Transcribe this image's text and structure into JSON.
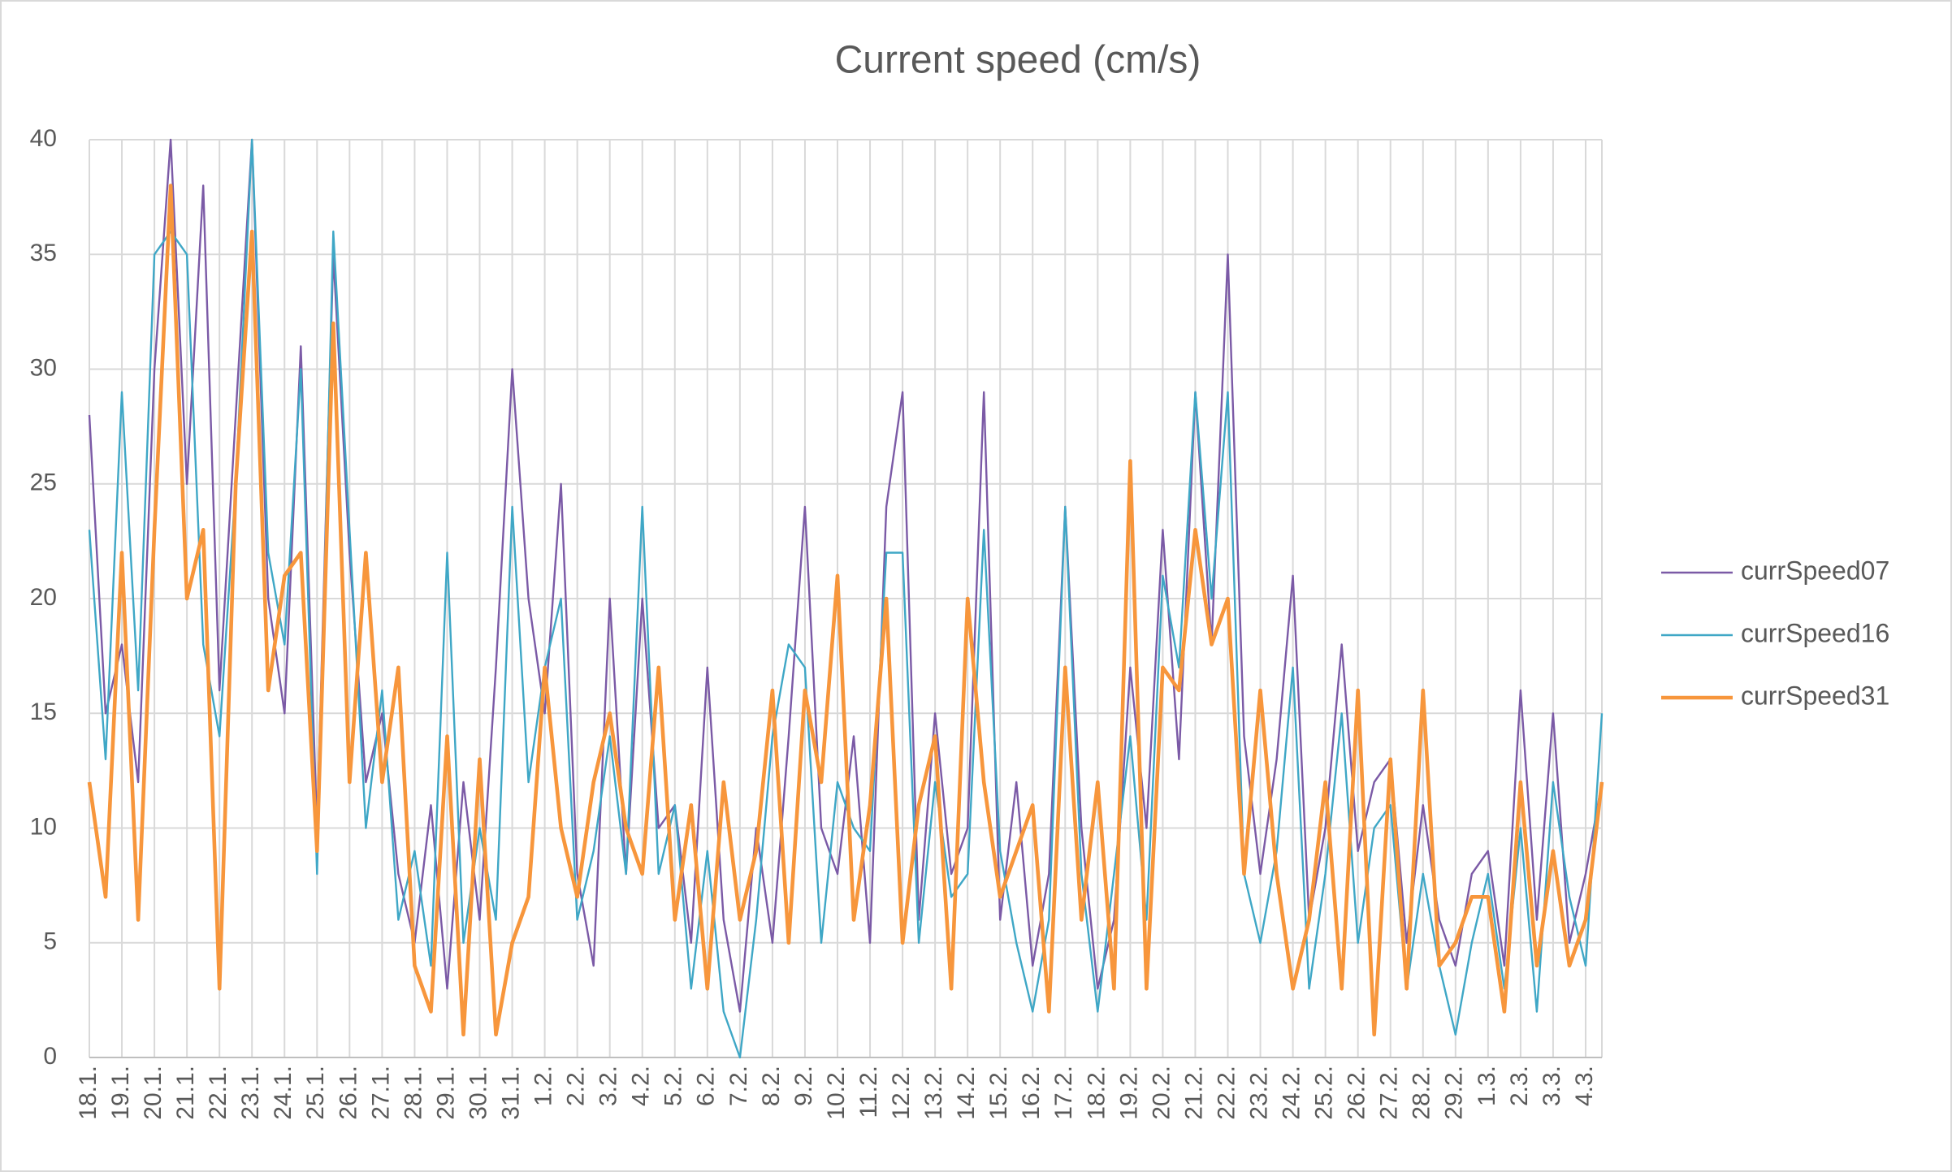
{
  "chart_data": {
    "type": "line",
    "title": "Current speed (cm/s)",
    "categories": [
      "18.1.",
      null,
      "19.1.",
      null,
      "20.1.",
      null,
      "21.1.",
      null,
      "22.1.",
      null,
      "23.1.",
      null,
      "24.1.",
      null,
      "25.1.",
      null,
      "26.1.",
      null,
      "27.1.",
      null,
      "28.1.",
      null,
      "29.1.",
      null,
      "30.1.",
      null,
      "31.1.",
      null,
      "1.2.",
      null,
      "2.2.",
      null,
      "3.2.",
      null,
      "4.2.",
      null,
      "5.2.",
      null,
      "6.2.",
      null,
      "7.2.",
      null,
      "8.2.",
      null,
      "9.2.",
      null,
      "10.2.",
      null,
      "11.2.",
      null,
      "12.2.",
      null,
      "13.2.",
      null,
      "14.2.",
      null,
      "15.2.",
      null,
      "16.2.",
      null,
      "17.2.",
      null,
      "18.2.",
      null,
      "19.2.",
      null,
      "20.2.",
      null,
      "21.2.",
      null,
      "22.2.",
      null,
      "23.2.",
      null,
      "24.2.",
      null,
      "25.2.",
      null,
      "26.2.",
      null,
      "27.2.",
      null,
      "28.2.",
      null,
      "29.2.",
      null,
      "1.3.",
      null,
      "2.3.",
      null,
      "3.3.",
      null,
      "4.3.",
      null
    ],
    "series": [
      {
        "name": "currSpeed07",
        "color": "#7b5aa6",
        "values": [
          28,
          15,
          18,
          12,
          30,
          40,
          25,
          38,
          16,
          28,
          40,
          20,
          15,
          31,
          10,
          35,
          22,
          12,
          15,
          8,
          5,
          11,
          3,
          12,
          6,
          17,
          30,
          20,
          15,
          25,
          8,
          4,
          20,
          8,
          20,
          10,
          11,
          5,
          17,
          6,
          2,
          10,
          5,
          14,
          24,
          10,
          8,
          14,
          5,
          24,
          29,
          6,
          15,
          8,
          10,
          29,
          6,
          12,
          4,
          8,
          24,
          10,
          3,
          6,
          17,
          10,
          23,
          13,
          29,
          18,
          35,
          14,
          8,
          13,
          21,
          6,
          10,
          18,
          9,
          12,
          13,
          5,
          11,
          6,
          4,
          8,
          9,
          4,
          16,
          6,
          15,
          5,
          8,
          12
        ]
      },
      {
        "name": "currSpeed16",
        "color": "#3fa7c6",
        "values": [
          23,
          13,
          29,
          16,
          35,
          36,
          35,
          18,
          14,
          25,
          40,
          22,
          18,
          30,
          8,
          36,
          23,
          10,
          16,
          6,
          9,
          4,
          22,
          5,
          10,
          6,
          24,
          12,
          17,
          20,
          6,
          9,
          14,
          8,
          24,
          8,
          11,
          3,
          9,
          2,
          0,
          6,
          14,
          18,
          17,
          5,
          12,
          10,
          9,
          22,
          22,
          5,
          12,
          7,
          8,
          23,
          9,
          5,
          2,
          6,
          24,
          8,
          2,
          8,
          14,
          6,
          21,
          17,
          29,
          20,
          29,
          8,
          5,
          9,
          17,
          3,
          8,
          15,
          5,
          10,
          11,
          3,
          8,
          4,
          1,
          5,
          8,
          3,
          10,
          2,
          12,
          7,
          4,
          15
        ]
      },
      {
        "name": "currSpeed31",
        "color": "#f7963c",
        "values": [
          12,
          7,
          22,
          6,
          23,
          38,
          20,
          23,
          3,
          25,
          36,
          16,
          21,
          22,
          9,
          32,
          12,
          22,
          12,
          17,
          4,
          2,
          14,
          1,
          13,
          1,
          5,
          7,
          17,
          10,
          7,
          12,
          15,
          10,
          8,
          17,
          6,
          11,
          3,
          12,
          6,
          9,
          16,
          5,
          16,
          12,
          21,
          6,
          11,
          20,
          5,
          11,
          14,
          3,
          20,
          12,
          7,
          9,
          11,
          2,
          17,
          6,
          12,
          3,
          26,
          3,
          17,
          16,
          23,
          18,
          20,
          8,
          16,
          8,
          3,
          6,
          12,
          3,
          16,
          1,
          13,
          3,
          16,
          4,
          5,
          7,
          7,
          2,
          12,
          4,
          9,
          4,
          6,
          12
        ]
      }
    ],
    "ylim": [
      0,
      40
    ],
    "yticks": [
      0,
      5,
      10,
      15,
      20,
      25,
      30,
      35,
      40
    ],
    "grid": true,
    "legend": "right"
  }
}
